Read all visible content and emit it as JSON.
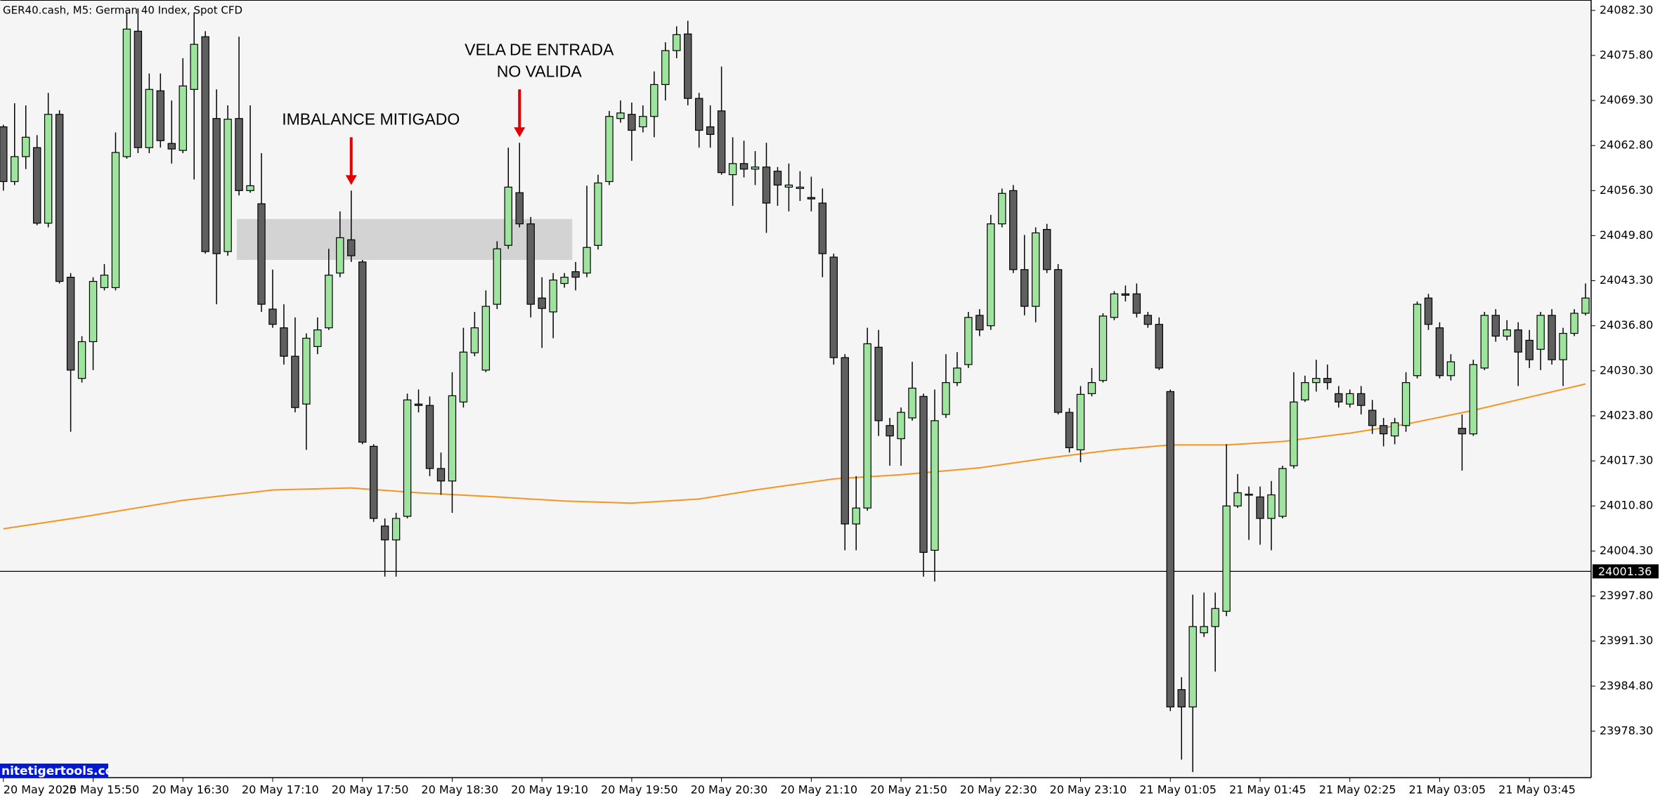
{
  "chart_data": {
    "type": "candlestick",
    "title": "GER40.cash, M5:  German 40 Index, Spot CFD",
    "watermark": "nitetigertools.cc",
    "colors": {
      "up": "#9ee49e",
      "down": "#5f5f5f",
      "wick": "#000000"
    },
    "open": [
      24065.5,
      24057.6,
      24061.2,
      24062.5,
      24051.6,
      24067.3,
      24043.8,
      24029.2,
      24034.5,
      24042.3,
      24042.3,
      24061.2,
      24079.3,
      24062.5,
      24070.7,
      24063.1,
      24062.1,
      24070.9,
      24078.5,
      24066.7,
      24047.5,
      24066.7,
      24056.3,
      24054.4,
      24039.2,
      24036.5,
      24032.4,
      24025.5,
      24033.8,
      24036.5,
      24044.4,
      24049.2,
      24046.0,
      24019.4,
      24007.9,
      24005.9,
      24009.3,
      24025.5,
      24025.3,
      24016.2,
      24014.4,
      24025.8,
      24032.9,
      24030.4,
      24039.9,
      24048.4,
      24056.0,
      24051.5,
      24040.8,
      24038.8,
      24042.9,
      24044.6,
      24044.4,
      24048.4,
      24057.6,
      24066.7,
      24067.3,
      24065.5,
      24067.0,
      24071.6,
      24076.5,
      24078.9,
      24069.6,
      24065.5,
      24067.8,
      24058.6,
      24060.2,
      24059.4,
      24059.7,
      24059.1,
      24056.8,
      24056.6,
      24055.3,
      24054.5,
      24046.7,
      24032.2,
      24008.2,
      24010.5,
      24033.7,
      24022.4,
      24020.5,
      24023.5,
      24026.6,
      24004.4,
      24024.0,
      24028.6,
      24031.2,
      24038.3,
      24036.8,
      24051.5,
      24056.3,
      24044.9,
      24039.6,
      24050.7,
      24044.9,
      24024.3,
      24018.9,
      24027.0,
      24028.9,
      24038.0,
      24041.4,
      24041.4,
      24038.3,
      24037.0,
      24027.3,
      23984.3,
      23981.8,
      23992.5,
      23993.4,
      23995.6,
      24010.8,
      24012.4,
      24012.1,
      24009.0,
      24009.3,
      24016.6,
      24026.1,
      24028.6,
      24029.2,
      24027.0,
      24025.5,
      24027.0,
      24024.6,
      24022.4,
      24020.9,
      24022.4,
      24029.6,
      24040.8,
      24036.5,
      24029.6,
      24022.0,
      24021.2,
      24030.7,
      24038.3,
      24035.3,
      24036.2,
      24034.7,
      24033.4,
      24038.3,
      24031.9,
      24035.7,
      24038.6
    ],
    "high": [
      24065.8,
      24068.9,
      24068.6,
      24064.3,
      24070.4,
      24067.9,
      24044.4,
      24035.3,
      24043.8,
      24045.7,
      24064.7,
      24082.0,
      24082.6,
      24073.2,
      24073.2,
      24069.3,
      24075.4,
      24082.0,
      24079.3,
      24070.9,
      24068.6,
      24078.5,
      24068.6,
      24061.7,
      24044.9,
      24039.9,
      24038.0,
      24035.7,
      24038.0,
      24047.9,
      24053.3,
      24056.3,
      24046.3,
      24019.7,
      24009.0,
      24009.8,
      24027.0,
      24027.6,
      24026.6,
      24018.5,
      24030.1,
      24036.5,
      24038.8,
      24041.9,
      24049.0,
      24062.5,
      24063.2,
      24052.5,
      24043.8,
      24044.4,
      24044.4,
      24046.0,
      24057.0,
      24058.6,
      24067.8,
      24069.3,
      24069.0,
      24068.6,
      24073.5,
      24077.7,
      24080.0,
      24080.8,
      24070.4,
      24068.6,
      24074.2,
      24064.0,
      24063.5,
      24062.0,
      24063.2,
      24059.7,
      24060.2,
      24059.1,
      24058.3,
      24056.6,
      24047.2,
      24032.7,
      24015.1,
      24036.5,
      24036.2,
      24023.5,
      24025.0,
      24031.6,
      24027.0,
      24027.6,
      24032.7,
      24033.0,
      24038.8,
      24039.2,
      24052.8,
      24056.6,
      24057.1,
      24049.9,
      24051.0,
      24051.5,
      24045.7,
      24024.9,
      24028.1,
      24030.7,
      24038.6,
      24041.8,
      24042.6,
      24042.9,
      24038.8,
      24038.0,
      24027.6,
      23986.1,
      23998.0,
      23998.3,
      23998.3,
      24019.7,
      24015.4,
      24013.6,
      24013.6,
      24014.4,
      24016.6,
      24030.1,
      24029.6,
      24031.9,
      24031.2,
      24028.1,
      24027.6,
      24028.1,
      24026.1,
      24023.5,
      24023.5,
      24030.1,
      24040.3,
      24041.4,
      24037.3,
      24032.7,
      24024.0,
      24031.9,
      24038.8,
      24039.2,
      24037.6,
      24037.3,
      24036.2,
      24038.8,
      24039.2,
      24036.5,
      24039.2,
      24042.9
    ],
    "low": [
      24056.3,
      24057.1,
      24059.4,
      24051.3,
      24051.0,
      24042.9,
      24021.5,
      24028.6,
      24030.4,
      24041.9,
      24041.9,
      24060.9,
      24061.7,
      24061.7,
      24062.5,
      24060.2,
      24061.7,
      24057.9,
      24047.2,
      24039.9,
      24046.9,
      24055.6,
      24056.0,
      24038.8,
      24036.5,
      24031.2,
      24024.3,
      24018.9,
      24032.7,
      24036.2,
      24043.8,
      24046.0,
      24019.7,
      24008.5,
      24000.6,
      24000.6,
      24009.0,
      24024.3,
      24015.1,
      24012.4,
      24009.8,
      24025.0,
      24032.4,
      24030.1,
      24039.2,
      24047.9,
      24051.0,
      24038.0,
      24033.6,
      24035.0,
      24042.3,
      24041.9,
      24043.8,
      24047.8,
      24057.1,
      24066.1,
      24060.6,
      24064.7,
      24064.0,
      24069.3,
      24075.4,
      24068.6,
      24062.5,
      24062.5,
      24058.6,
      24054.1,
      24058.2,
      24057.1,
      24050.2,
      24054.1,
      24053.3,
      24054.8,
      24053.3,
      24043.8,
      24031.2,
      24004.4,
      24004.4,
      24010.1,
      24020.9,
      24016.6,
      24016.6,
      24023.1,
      24000.6,
      23999.9,
      24023.5,
      24028.1,
      24030.7,
      24035.3,
      24036.2,
      24051.0,
      24044.4,
      24038.3,
      24037.3,
      24044.4,
      24024.0,
      24018.5,
      24017.1,
      24026.6,
      24028.6,
      24037.6,
      24040.3,
      24038.0,
      24036.5,
      24030.4,
      23981.2,
      23974.2,
      23972.4,
      23991.9,
      23986.9,
      23994.9,
      24010.5,
      24005.9,
      24005.2,
      24004.4,
      24009.0,
      24016.2,
      24025.8,
      24027.3,
      24027.6,
      24025.0,
      24025.0,
      24024.0,
      24021.2,
      24019.4,
      24019.7,
      24021.5,
      24029.2,
      24036.2,
      24029.2,
      24028.9,
      24015.9,
      24020.9,
      24030.4,
      24034.5,
      24034.7,
      24028.1,
      24030.7,
      24030.4,
      24031.2,
      24028.1,
      24035.3,
      24038.3
    ],
    "close": [
      24057.6,
      24061.2,
      24064.0,
      24051.6,
      24067.3,
      24043.2,
      24030.4,
      24034.5,
      24043.2,
      24044.1,
      24061.8,
      24079.6,
      24062.5,
      24070.9,
      24063.5,
      24062.3,
      24071.4,
      24077.4,
      24047.5,
      24047.2,
      24066.6,
      24056.3,
      24057.0,
      24039.9,
      24037.0,
      24032.4,
      24025.0,
      24035.0,
      24036.2,
      24044.1,
      24049.5,
      24046.9,
      24020.0,
      24009.0,
      24005.9,
      24009.0,
      24026.1,
      24025.3,
      24016.2,
      24014.4,
      24026.7,
      24033.0,
      24036.5,
      24039.6,
      24047.9,
      24056.8,
      24051.5,
      24039.9,
      24039.3,
      24043.4,
      24043.8,
      24043.8,
      24048.1,
      24057.4,
      24067.0,
      24067.5,
      24065.0,
      24067.0,
      24071.6,
      24076.5,
      24078.8,
      24069.6,
      24065.0,
      24064.4,
      24058.9,
      24060.2,
      24059.4,
      24059.7,
      24054.5,
      24057.1,
      24057.1,
      24056.8,
      24055.1,
      24047.2,
      24032.2,
      24008.2,
      24010.5,
      24034.2,
      24023.1,
      24020.9,
      24024.3,
      24027.8,
      24004.1,
      24023.1,
      24028.6,
      24030.7,
      24038.0,
      24036.2,
      24051.5,
      24055.9,
      24044.9,
      24039.6,
      24050.2,
      24044.9,
      24024.3,
      24019.2,
      24026.9,
      24028.6,
      24038.2,
      24041.4,
      24041.2,
      24038.6,
      24037.0,
      24030.7,
      23981.8,
      23981.8,
      23993.4,
      23993.4,
      23996.0,
      24010.8,
      24012.7,
      24012.5,
      24009.0,
      24012.4,
      24016.2,
      24025.8,
      24028.6,
      24029.2,
      24028.6,
      24025.8,
      24027.0,
      24025.3,
      24022.4,
      24021.2,
      24022.8,
      24028.6,
      24039.9,
      24037.0,
      24029.6,
      24031.6,
      24021.2,
      24031.2,
      24038.3,
      24035.3,
      24036.2,
      24033.0,
      24031.9,
      24038.3,
      24031.9,
      24035.7,
      24038.6,
      24040.8
    ],
    "overlays": [
      {
        "type": "line",
        "color": "#f7941d",
        "x": [
          0,
          7,
          16,
          24,
          31,
          37,
          44,
          50,
          56,
          62,
          67,
          74,
          80,
          87,
          93,
          99,
          104,
          109,
          114,
          120,
          125,
          131,
          136,
          141
        ],
        "values": [
          24007.5,
          24009.2,
          24011.6,
          24013.1,
          24013.4,
          24012.7,
          24012.1,
          24011.5,
          24011.2,
          24011.8,
          24013.1,
          24014.7,
          24015.3,
          24016.3,
          24017.7,
          24018.9,
          24019.6,
          24019.6,
          24020.1,
          24021.3,
          24022.6,
          24024.6,
          24026.5,
          24028.4
        ]
      }
    ],
    "price_line": {
      "value": 24001.36,
      "color": "#000000"
    },
    "zone": {
      "x": [
        20.8,
        50.7
      ],
      "y": [
        24046.3,
        24052.2
      ],
      "color": "#d3d3d3"
    },
    "annotations": [
      {
        "text": [
          "IMBALANCE MITIGADO"
        ],
        "x": 31,
        "color": "#e00000"
      },
      {
        "text": [
          "VELA DE ENTRADA",
          "NO VALIDA"
        ],
        "x": 46,
        "color": "#e00000"
      }
    ],
    "xlim": [
      -0.3,
      141.5
    ],
    "xticks": [
      {
        "value": 0,
        "label": "20 May 2025"
      },
      {
        "value": 8,
        "label": "20 May 15:50"
      },
      {
        "value": 16,
        "label": "20 May 16:30"
      },
      {
        "value": 24,
        "label": "20 May 17:10"
      },
      {
        "value": 32,
        "label": "20 May 17:50"
      },
      {
        "value": 40,
        "label": "20 May 18:30"
      },
      {
        "value": 48,
        "label": "20 May 19:10"
      },
      {
        "value": 56,
        "label": "20 May 19:50"
      },
      {
        "value": 64,
        "label": "20 May 20:30"
      },
      {
        "value": 72,
        "label": "20 May 21:10"
      },
      {
        "value": 80,
        "label": "20 May 21:50"
      },
      {
        "value": 88,
        "label": "20 May 22:30"
      },
      {
        "value": 96,
        "label": "20 May 23:10"
      },
      {
        "value": 104,
        "label": "21 May 01:05"
      },
      {
        "value": 112,
        "label": "21 May 01:45"
      },
      {
        "value": 120,
        "label": "21 May 02:25"
      },
      {
        "value": 128,
        "label": "21 May 03:05"
      },
      {
        "value": 136,
        "label": "21 May 03:45"
      }
    ],
    "ylim": [
      23971.6,
      24083.8
    ],
    "yticks": [
      {
        "value": 24082.3,
        "label": "24082.30"
      },
      {
        "value": 24075.8,
        "label": "24075.80"
      },
      {
        "value": 24069.3,
        "label": "24069.30"
      },
      {
        "value": 24062.8,
        "label": "24062.80"
      },
      {
        "value": 24056.3,
        "label": "24056.30"
      },
      {
        "value": 24049.8,
        "label": "24049.80"
      },
      {
        "value": 24043.3,
        "label": "24043.30"
      },
      {
        "value": 24036.8,
        "label": "24036.80"
      },
      {
        "value": 24030.3,
        "label": "24030.30"
      },
      {
        "value": 24023.8,
        "label": "24023.80"
      },
      {
        "value": 24017.3,
        "label": "24017.30"
      },
      {
        "value": 24010.8,
        "label": "24010.80"
      },
      {
        "value": 24004.3,
        "label": "24004.30"
      },
      {
        "value": 23997.8,
        "label": "23997.80"
      },
      {
        "value": 23991.3,
        "label": "23991.30"
      },
      {
        "value": 23984.8,
        "label": "23984.80"
      },
      {
        "value": 23978.3,
        "label": "23978.30"
      }
    ],
    "grid": false
  }
}
